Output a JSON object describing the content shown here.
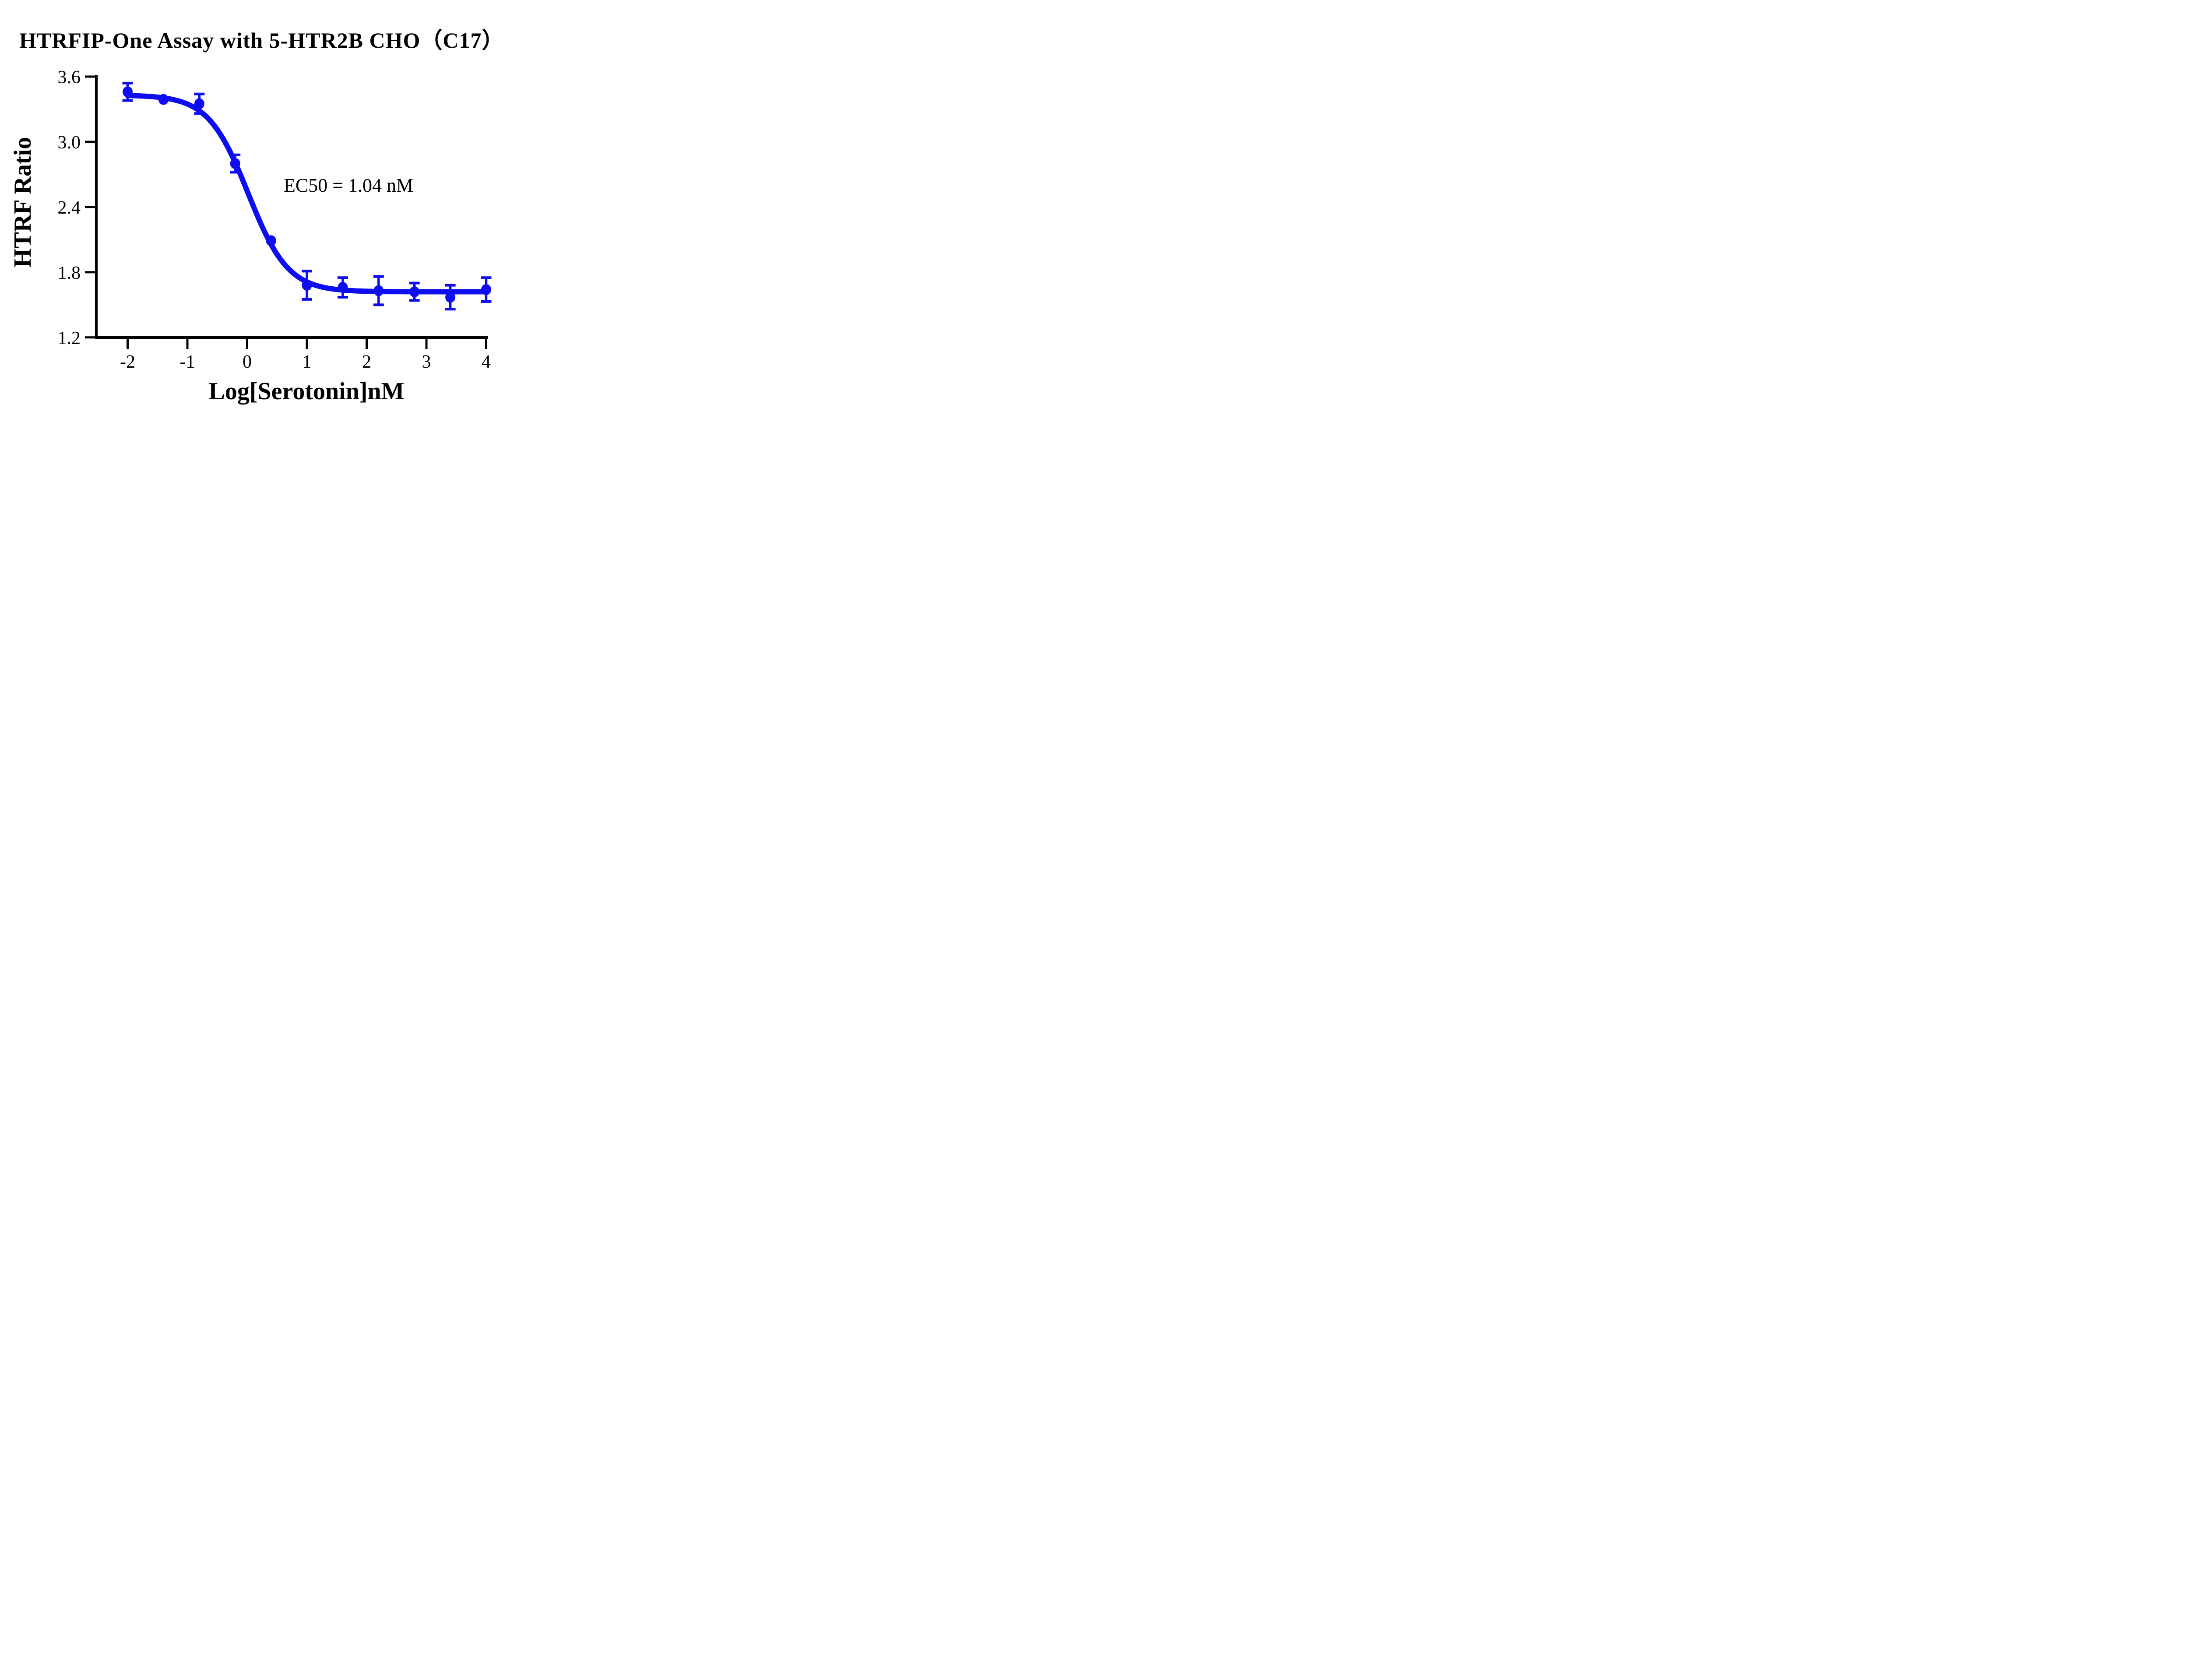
{
  "chart_data": {
    "type": "scatter",
    "title": "HTRFIP-One Assay with 5-HTR2B CHO（C17）",
    "xlabel": "Log[Serotonin]nM",
    "ylabel": "HTRF Ratio",
    "annotation": "EC50 = 1.04 nM",
    "ec50_nM": 1.04,
    "xlim": [
      -2.3,
      4.1
    ],
    "ylim": [
      1.2,
      3.6
    ],
    "x_tick_labels": [
      "-2",
      "-1",
      "0",
      "1",
      "2",
      "3",
      "4"
    ],
    "y_tick_labels": [
      "3.6",
      "3.0",
      "2.4",
      "1.8",
      "1.2"
    ],
    "grid": false,
    "legend_position": "none",
    "colors": {
      "series": "#0d0df0",
      "axis": "#000000",
      "text": "#000000"
    },
    "series": [
      {
        "name": "5-HTR2B CHO (C17)",
        "marker": "filled-circle",
        "error_bars": "sd",
        "points": [
          {
            "x": -2.0,
            "y": 3.46,
            "err": 0.08
          },
          {
            "x": -1.4,
            "y": 3.39,
            "err": 0
          },
          {
            "x": -0.8,
            "y": 3.35,
            "err": 0.09
          },
          {
            "x": -0.2,
            "y": 2.8,
            "err": 0.08
          },
          {
            "x": 0.4,
            "y": 2.09,
            "err": 0
          },
          {
            "x": 1.0,
            "y": 1.68,
            "err": 0.13
          },
          {
            "x": 1.6,
            "y": 1.66,
            "err": 0.09
          },
          {
            "x": 2.2,
            "y": 1.63,
            "err": 0.13
          },
          {
            "x": 2.8,
            "y": 1.62,
            "err": 0.08
          },
          {
            "x": 3.4,
            "y": 1.57,
            "err": 0.11
          },
          {
            "x": 4.0,
            "y": 1.64,
            "err": 0.11
          }
        ]
      }
    ],
    "fit": {
      "model": "4PL sigmoidal dose-response",
      "top": 3.43,
      "bottom": 1.62,
      "logEC50": 0.017,
      "hillslope": -1.3,
      "x_range": [
        -2.0,
        4.0
      ]
    }
  }
}
